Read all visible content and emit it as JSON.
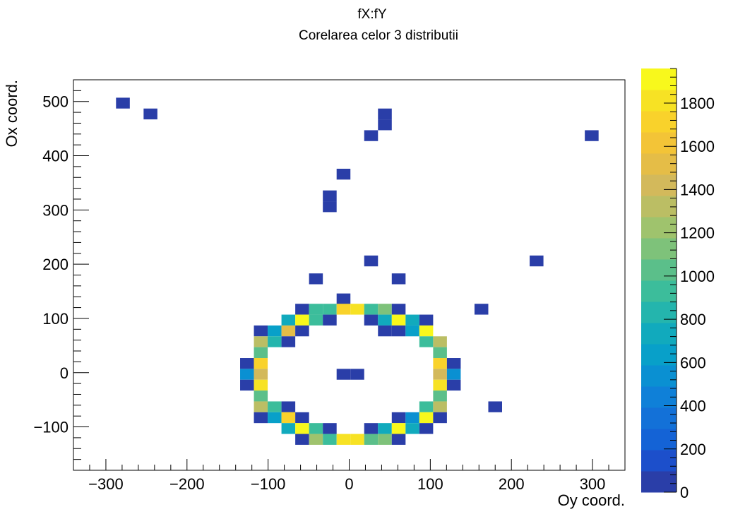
{
  "chart_data": {
    "type": "heatmap",
    "title": "fX:fY",
    "subtitle": "Corelarea celor 3 distributii",
    "xlabel": "Oy coord.",
    "ylabel": "Ox coord.",
    "xlim": [
      -340,
      340
    ],
    "ylim": [
      -180,
      540
    ],
    "x_ticks": [
      -300,
      -200,
      -100,
      0,
      100,
      200,
      300
    ],
    "x_tick_labels": [
      "−300",
      "−200",
      "−100",
      "0",
      "100",
      "200",
      "300"
    ],
    "y_ticks": [
      -100,
      0,
      100,
      200,
      300,
      400,
      500
    ],
    "y_tick_labels": [
      "−100",
      "0",
      "100",
      "200",
      "300",
      "400",
      "500"
    ],
    "bin_width_x": 17,
    "bin_width_y": 20,
    "z_range": [
      0,
      1960
    ],
    "colorbar_ticks": [
      0,
      200,
      400,
      600,
      800,
      1000,
      1200,
      1400,
      1600,
      1800
    ],
    "colorbar_tick_labels": [
      "0",
      "200",
      "400",
      "600",
      "800",
      "1000",
      "1200",
      "1400",
      "1600",
      "1800"
    ],
    "palette": [
      "#2a3ea8",
      "#1c4fcb",
      "#1463d6",
      "#1371d8",
      "#0f80d8",
      "#0a90d2",
      "#08a0c9",
      "#11aabd",
      "#24b5ad",
      "#3cbd9b",
      "#5bbf8a",
      "#7ec27a",
      "#9fc36d",
      "#bbbe64",
      "#d3b95b",
      "#e5bd47",
      "#f3c437",
      "#f9d22b",
      "#f7e224",
      "#f8f81c"
    ],
    "bins": [
      {
        "x": -279,
        "y": 497,
        "z": 60
      },
      {
        "x": -245,
        "y": 477,
        "z": 60
      },
      {
        "x": 44,
        "y": 477,
        "z": 60
      },
      {
        "x": 44,
        "y": 457,
        "z": 60
      },
      {
        "x": 27,
        "y": 437,
        "z": 60
      },
      {
        "x": 299,
        "y": 437,
        "z": 60
      },
      {
        "x": -7,
        "y": 366,
        "z": 60
      },
      {
        "x": -24,
        "y": 326,
        "z": 60
      },
      {
        "x": -24,
        "y": 306,
        "z": 60
      },
      {
        "x": 27,
        "y": 206,
        "z": 60
      },
      {
        "x": 231,
        "y": 206,
        "z": 60
      },
      {
        "x": -41,
        "y": 173,
        "z": 60
      },
      {
        "x": 61,
        "y": 173,
        "z": 60
      },
      {
        "x": -7,
        "y": 136,
        "z": 60
      },
      {
        "x": -58,
        "y": 117,
        "z": 60
      },
      {
        "x": -41,
        "y": 117,
        "z": 900
      },
      {
        "x": -24,
        "y": 117,
        "z": 900
      },
      {
        "x": -7,
        "y": 117,
        "z": 1700
      },
      {
        "x": 10,
        "y": 117,
        "z": 1800
      },
      {
        "x": 27,
        "y": 117,
        "z": 900
      },
      {
        "x": 44,
        "y": 117,
        "z": 1100
      },
      {
        "x": 61,
        "y": 117,
        "z": 60
      },
      {
        "x": 163,
        "y": 117,
        "z": 60
      },
      {
        "x": -75,
        "y": 97,
        "z": 700
      },
      {
        "x": -58,
        "y": 97,
        "z": 1900
      },
      {
        "x": -41,
        "y": 97,
        "z": 900
      },
      {
        "x": -24,
        "y": 97,
        "z": 60
      },
      {
        "x": 27,
        "y": 97,
        "z": 60
      },
      {
        "x": 44,
        "y": 97,
        "z": 700
      },
      {
        "x": 61,
        "y": 97,
        "z": 1900
      },
      {
        "x": 78,
        "y": 97,
        "z": 700
      },
      {
        "x": 95,
        "y": 97,
        "z": 60
      },
      {
        "x": -109,
        "y": 77,
        "z": 60
      },
      {
        "x": -92,
        "y": 77,
        "z": 600
      },
      {
        "x": -75,
        "y": 77,
        "z": 1500
      },
      {
        "x": -58,
        "y": 77,
        "z": 60
      },
      {
        "x": 44,
        "y": 77,
        "z": 60
      },
      {
        "x": 61,
        "y": 77,
        "z": 60
      },
      {
        "x": 78,
        "y": 77,
        "z": 600
      },
      {
        "x": 95,
        "y": 77,
        "z": 1900
      },
      {
        "x": -109,
        "y": 57,
        "z": 1300
      },
      {
        "x": -92,
        "y": 57,
        "z": 800
      },
      {
        "x": -75,
        "y": 57,
        "z": 60
      },
      {
        "x": 95,
        "y": 57,
        "z": 900
      },
      {
        "x": 112,
        "y": 57,
        "z": 1300
      },
      {
        "x": -109,
        "y": 37,
        "z": 1000
      },
      {
        "x": 112,
        "y": 37,
        "z": 1000
      },
      {
        "x": -126,
        "y": 17,
        "z": 60
      },
      {
        "x": -109,
        "y": 17,
        "z": 1700
      },
      {
        "x": 112,
        "y": 17,
        "z": 1700
      },
      {
        "x": 129,
        "y": 17,
        "z": 60
      },
      {
        "x": -126,
        "y": -3,
        "z": 500
      },
      {
        "x": -109,
        "y": -3,
        "z": 1400
      },
      {
        "x": -7,
        "y": -3,
        "z": 60
      },
      {
        "x": 10,
        "y": -3,
        "z": 60
      },
      {
        "x": 112,
        "y": -3,
        "z": 1400
      },
      {
        "x": 129,
        "y": -3,
        "z": 500
      },
      {
        "x": -126,
        "y": -23,
        "z": 60
      },
      {
        "x": -109,
        "y": -23,
        "z": 1800
      },
      {
        "x": 112,
        "y": -23,
        "z": 1800
      },
      {
        "x": 129,
        "y": -23,
        "z": 60
      },
      {
        "x": -109,
        "y": -43,
        "z": 1000
      },
      {
        "x": 112,
        "y": -43,
        "z": 1000
      },
      {
        "x": -109,
        "y": -63,
        "z": 1300
      },
      {
        "x": -92,
        "y": -63,
        "z": 900
      },
      {
        "x": -75,
        "y": -63,
        "z": 60
      },
      {
        "x": 95,
        "y": -63,
        "z": 900
      },
      {
        "x": 112,
        "y": -63,
        "z": 1300
      },
      {
        "x": 180,
        "y": -63,
        "z": 60
      },
      {
        "x": -109,
        "y": -83,
        "z": 60
      },
      {
        "x": -92,
        "y": -83,
        "z": 600
      },
      {
        "x": -75,
        "y": -83,
        "z": 1700
      },
      {
        "x": -58,
        "y": -83,
        "z": 60
      },
      {
        "x": 61,
        "y": -83,
        "z": 60
      },
      {
        "x": 78,
        "y": -83,
        "z": 500
      },
      {
        "x": 95,
        "y": -83,
        "z": 1900
      },
      {
        "x": 112,
        "y": -83,
        "z": 60
      },
      {
        "x": -75,
        "y": -103,
        "z": 700
      },
      {
        "x": -58,
        "y": -103,
        "z": 1900
      },
      {
        "x": -41,
        "y": -103,
        "z": 900
      },
      {
        "x": -24,
        "y": -103,
        "z": 60
      },
      {
        "x": 27,
        "y": -103,
        "z": 60
      },
      {
        "x": 44,
        "y": -103,
        "z": 700
      },
      {
        "x": 61,
        "y": -103,
        "z": 1900
      },
      {
        "x": 78,
        "y": -103,
        "z": 700
      },
      {
        "x": 95,
        "y": -103,
        "z": 60
      },
      {
        "x": -58,
        "y": -123,
        "z": 60
      },
      {
        "x": -41,
        "y": -123,
        "z": 1200
      },
      {
        "x": -24,
        "y": -123,
        "z": 900
      },
      {
        "x": -7,
        "y": -123,
        "z": 1800
      },
      {
        "x": 10,
        "y": -123,
        "z": 1800
      },
      {
        "x": 27,
        "y": -123,
        "z": 1000
      },
      {
        "x": 44,
        "y": -123,
        "z": 1100
      },
      {
        "x": 61,
        "y": -123,
        "z": 60
      }
    ]
  }
}
